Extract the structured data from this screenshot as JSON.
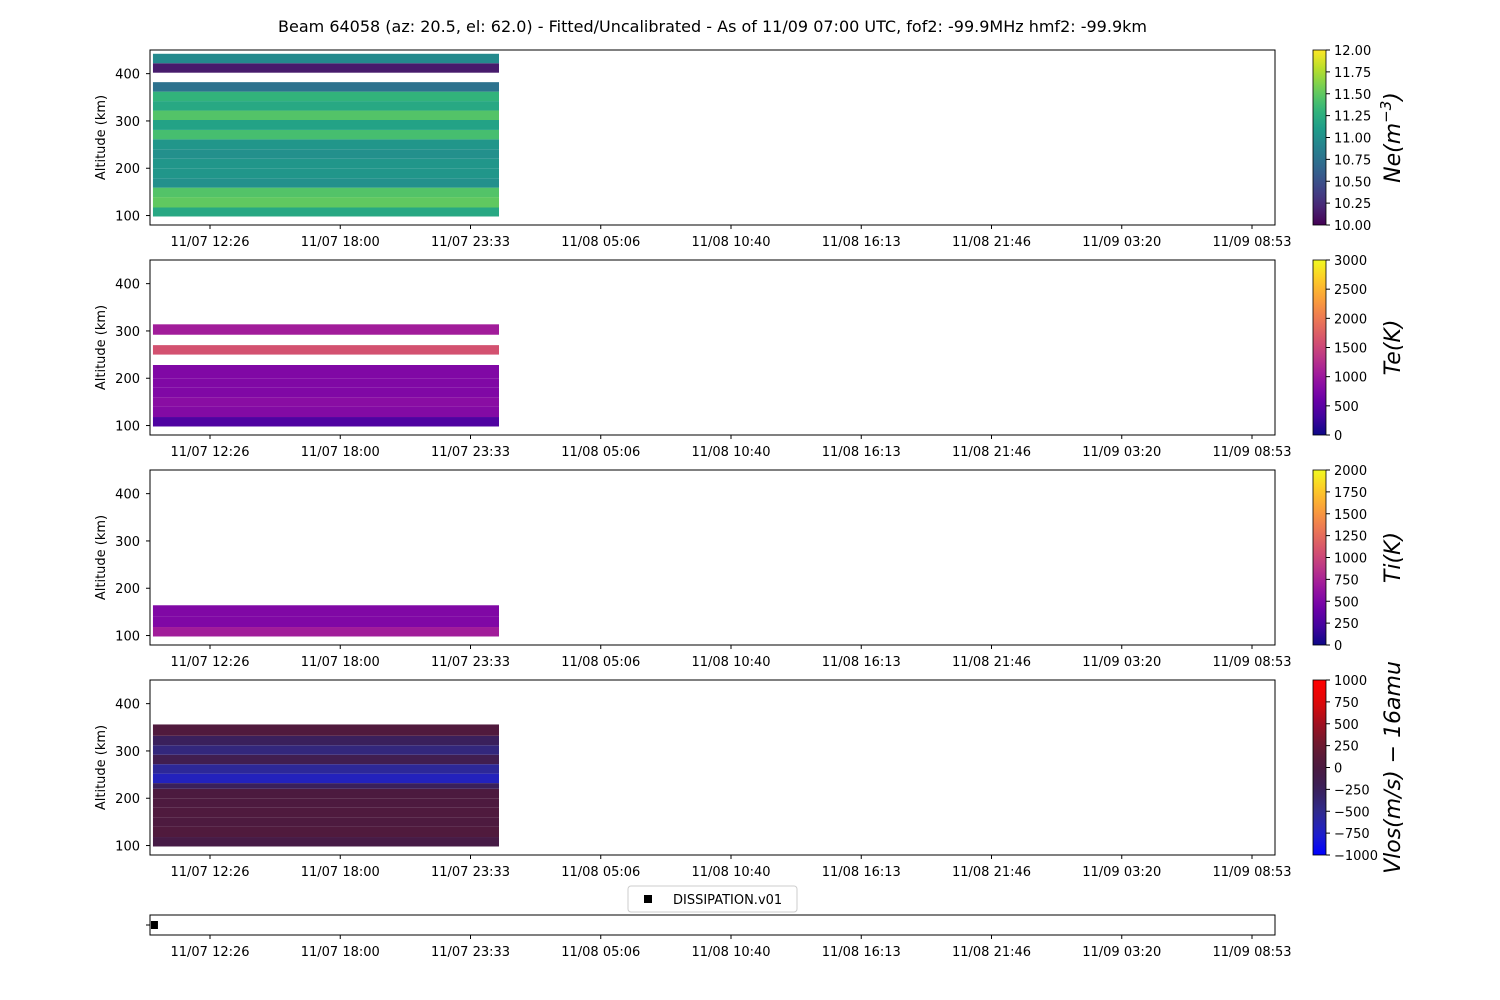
{
  "title": "Beam 64058 (az: 20.5, el: 62.0) - Fitted/Uncalibrated - As of 11/09 07:00 UTC, fof2: -99.9MHz  hmf2: -99.9km",
  "time_ticks": [
    "11/07 12:26",
    "11/07 18:00",
    "11/07 23:33",
    "11/08 05:06",
    "11/08 10:40",
    "11/08 16:13",
    "11/08 21:46",
    "11/09 03:20",
    "11/09 08:53"
  ],
  "altitude_ticks": [
    "100",
    "200",
    "300",
    "400"
  ],
  "ylabel": "Altitude (km)",
  "legend_label": "DISSIPATION.v01",
  "colors": {
    "frame": "#000000",
    "background": "#ffffff"
  },
  "chart_data": [
    {
      "type": "heatmap",
      "name": "ne",
      "colorbar_label": "Ne(m^-3)",
      "colormap": "viridis",
      "clim": [
        10.0,
        12.0
      ],
      "colorbar_ticks": [
        "12.00",
        "11.75",
        "11.50",
        "11.25",
        "11.00",
        "10.75",
        "10.50",
        "10.25",
        "10.00"
      ],
      "ylim": [
        80,
        450
      ],
      "x_extent": [
        "11/07 10:00",
        "11/07 23:00"
      ],
      "ylabel": "Altitude (km)",
      "bands": [
        {
          "alt": [
            98,
            117
          ],
          "value": 11.2
        },
        {
          "alt": [
            117,
            139
          ],
          "value": 11.5
        },
        {
          "alt": [
            139,
            159
          ],
          "value": 11.45
        },
        {
          "alt": [
            159,
            179
          ],
          "value": 11.0
        },
        {
          "alt": [
            179,
            200
          ],
          "value": 11.05
        },
        {
          "alt": [
            200,
            220
          ],
          "value": 11.05
        },
        {
          "alt": [
            220,
            240
          ],
          "value": 11.0
        },
        {
          "alt": [
            240,
            261
          ],
          "value": 11.05
        },
        {
          "alt": [
            261,
            281
          ],
          "value": 11.4
        },
        {
          "alt": [
            281,
            302
          ],
          "value": 11.15
        },
        {
          "alt": [
            302,
            322
          ],
          "value": 11.45
        },
        {
          "alt": [
            322,
            342
          ],
          "value": 11.2
        },
        {
          "alt": [
            342,
            362
          ],
          "value": 11.3
        },
        {
          "alt": [
            362,
            382
          ],
          "value": 10.75
        },
        {
          "alt": [
            402,
            422
          ],
          "value": 10.15
        },
        {
          "alt": [
            422,
            442
          ],
          "value": 10.95
        }
      ]
    },
    {
      "type": "heatmap",
      "name": "te",
      "colorbar_label": "Te(K)",
      "colormap": "plasma",
      "clim": [
        0,
        3000
      ],
      "colorbar_ticks": [
        "3000",
        "2500",
        "2000",
        "1500",
        "1000",
        "500",
        "0"
      ],
      "ylim": [
        80,
        450
      ],
      "x_extent": [
        "11/07 10:00",
        "11/07 23:00"
      ],
      "ylabel": "Altitude (km)",
      "bands": [
        {
          "alt": [
            98,
            118
          ],
          "value": 400
        },
        {
          "alt": [
            118,
            140
          ],
          "value": 800
        },
        {
          "alt": [
            140,
            160
          ],
          "value": 850
        },
        {
          "alt": [
            160,
            180
          ],
          "value": 780
        },
        {
          "alt": [
            180,
            200
          ],
          "value": 780
        },
        {
          "alt": [
            200,
            228
          ],
          "value": 780
        },
        {
          "alt": [
            250,
            270
          ],
          "value": 1600
        },
        {
          "alt": [
            292,
            314
          ],
          "value": 1050
        }
      ]
    },
    {
      "type": "heatmap",
      "name": "ti",
      "colorbar_label": "Ti(K)",
      "colormap": "plasma",
      "clim": [
        0,
        2000
      ],
      "colorbar_ticks": [
        "2000",
        "1750",
        "1500",
        "1250",
        "1000",
        "750",
        "500",
        "250",
        "0"
      ],
      "ylim": [
        80,
        450
      ],
      "x_extent": [
        "11/07 10:00",
        "11/07 23:00"
      ],
      "ylabel": "Altitude (km)",
      "bands": [
        {
          "alt": [
            98,
            118
          ],
          "value": 700
        },
        {
          "alt": [
            118,
            140
          ],
          "value": 520
        },
        {
          "alt": [
            140,
            164
          ],
          "value": 520
        }
      ]
    },
    {
      "type": "heatmap",
      "name": "vlos",
      "colorbar_label": "Vlos(m/s) - 16amu",
      "colormap": "seismic",
      "clim": [
        -1000,
        1000
      ],
      "colorbar_ticks": [
        "1000",
        "750",
        "500",
        "250",
        "0",
        "−250",
        "−500",
        "−750",
        "−1000"
      ],
      "ylim": [
        80,
        450
      ],
      "x_extent": [
        "11/07 10:00",
        "11/07 23:00"
      ],
      "ylabel": "Altitude (km)",
      "bands": [
        {
          "alt": [
            98,
            118
          ],
          "value": -60
        },
        {
          "alt": [
            118,
            140
          ],
          "value": 40
        },
        {
          "alt": [
            140,
            160
          ],
          "value": 20
        },
        {
          "alt": [
            160,
            180
          ],
          "value": 30
        },
        {
          "alt": [
            180,
            200
          ],
          "value": 20
        },
        {
          "alt": [
            200,
            220
          ],
          "value": 10
        },
        {
          "alt": [
            220,
            232
          ],
          "value": -250
        },
        {
          "alt": [
            232,
            252
          ],
          "value": -700
        },
        {
          "alt": [
            252,
            272
          ],
          "value": -550
        },
        {
          "alt": [
            272,
            292
          ],
          "value": -150
        },
        {
          "alt": [
            292,
            312
          ],
          "value": -420
        },
        {
          "alt": [
            312,
            332
          ],
          "value": -260
        },
        {
          "alt": [
            332,
            356
          ],
          "value": 40
        }
      ]
    },
    {
      "type": "scatter",
      "name": "dissipation",
      "legend": "DISSIPATION.v01",
      "points": [
        {
          "time": "11/07 10:00",
          "value": 0
        }
      ]
    }
  ]
}
